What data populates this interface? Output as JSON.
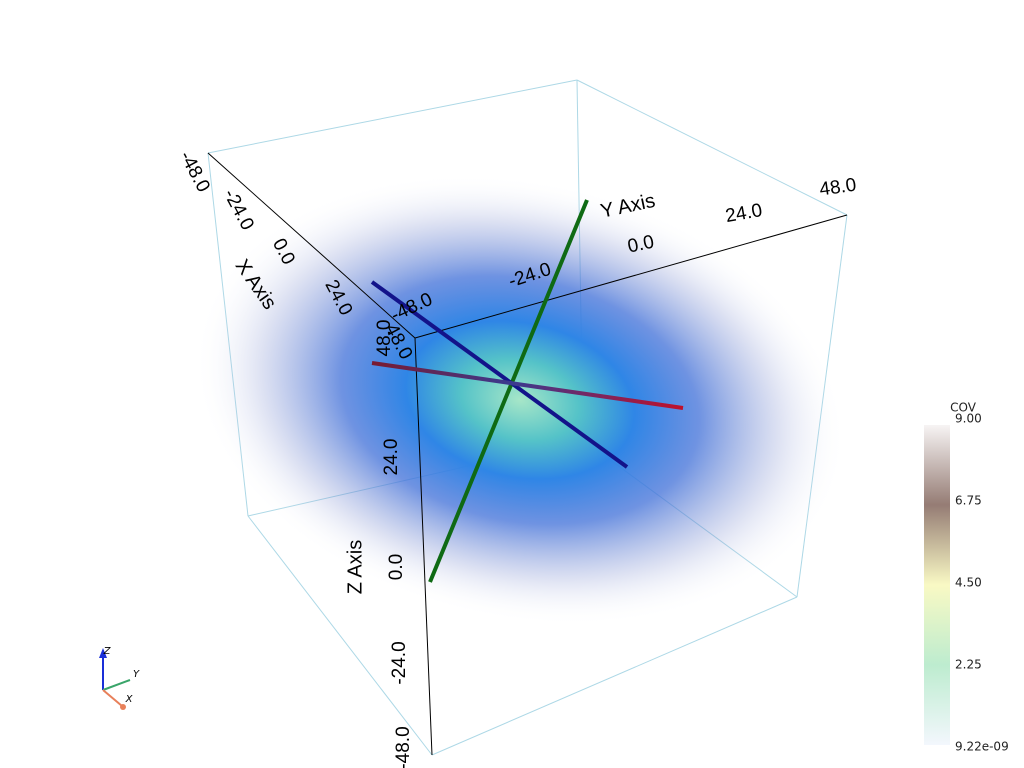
{
  "x_axis": {
    "title": "X Axis",
    "ticks": [
      "-48.0",
      "-24.0",
      "0.0",
      "24.0",
      "48.0"
    ]
  },
  "y_axis": {
    "title": "Y Axis",
    "ticks": [
      "-48.0",
      "-24.0",
      "0.0",
      "24.0",
      "48.0"
    ]
  },
  "z_axis": {
    "title": "Z Axis",
    "ticks": [
      "-48.0",
      "-24.0",
      "0.0",
      "24.0",
      "48.0"
    ]
  },
  "colorbar": {
    "title": "COV",
    "labels": [
      "9.00",
      "6.75",
      "4.50",
      "2.25",
      "9.22e-09"
    ]
  },
  "orientation_widget": {
    "labels": [
      "Z",
      "Y",
      "X"
    ]
  }
}
